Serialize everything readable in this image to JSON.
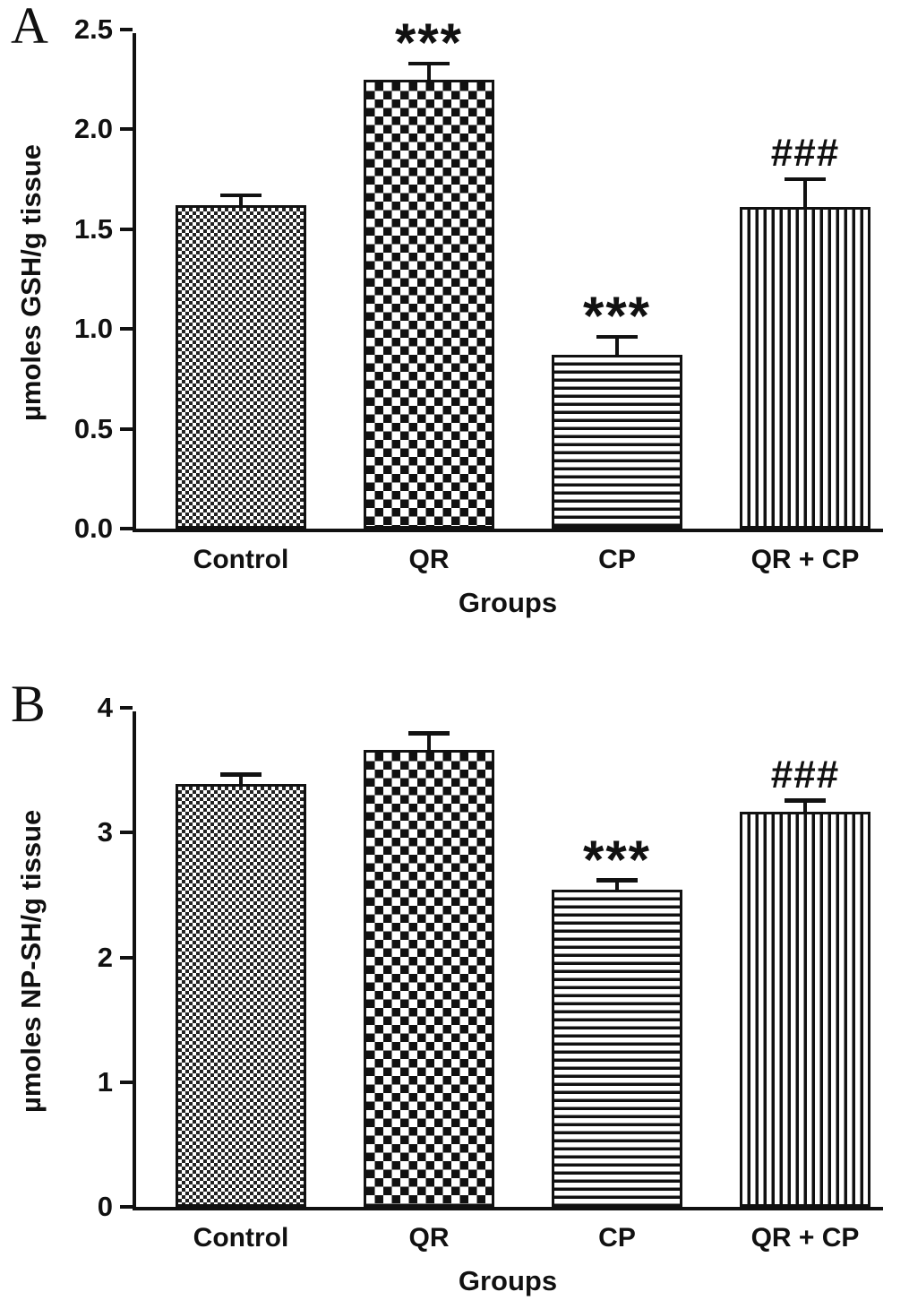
{
  "figure": {
    "type": "two-panel bar figure",
    "background": "#ffffff",
    "axis_color": "#111111"
  },
  "chart_data": [
    {
      "type": "bar",
      "panel": "A",
      "ylabel": "µmoles GSH/g tissue",
      "xlabel": "Groups",
      "categories": [
        "Control",
        "QR",
        "CP",
        "QR + CP"
      ],
      "values": [
        1.62,
        2.25,
        0.87,
        1.61
      ],
      "errors": [
        0.04,
        0.07,
        0.08,
        0.13
      ],
      "annotations": [
        "",
        "***",
        "***",
        "###"
      ],
      "ylim": [
        0,
        2.5
      ],
      "yticks": [
        0,
        0.5,
        1,
        1.5,
        2,
        2.5
      ],
      "ytick_labels": [
        "0.0",
        "0.5",
        "1.0",
        "1.5",
        "2.0",
        "2.5"
      ],
      "patterns": [
        "fine-checker",
        "coarse-checker",
        "horizontal-lines",
        "vertical-lines"
      ],
      "legend": "none",
      "grid": false
    },
    {
      "type": "bar",
      "panel": "B",
      "ylabel": "µmoles NP-SH/g tissue",
      "xlabel": "Groups",
      "categories": [
        "Control",
        "QR",
        "CP",
        "QR + CP"
      ],
      "values": [
        3.39,
        3.66,
        2.54,
        3.17
      ],
      "errors": [
        0.06,
        0.12,
        0.06,
        0.07
      ],
      "annotations": [
        "",
        "",
        "***",
        "###"
      ],
      "ylim": [
        0,
        4
      ],
      "yticks": [
        0,
        1,
        2,
        3,
        4
      ],
      "ytick_labels": [
        "0",
        "1",
        "2",
        "3",
        "4"
      ],
      "patterns": [
        "fine-checker",
        "coarse-checker",
        "horizontal-lines",
        "vertical-lines"
      ],
      "legend": "none",
      "grid": false
    }
  ]
}
